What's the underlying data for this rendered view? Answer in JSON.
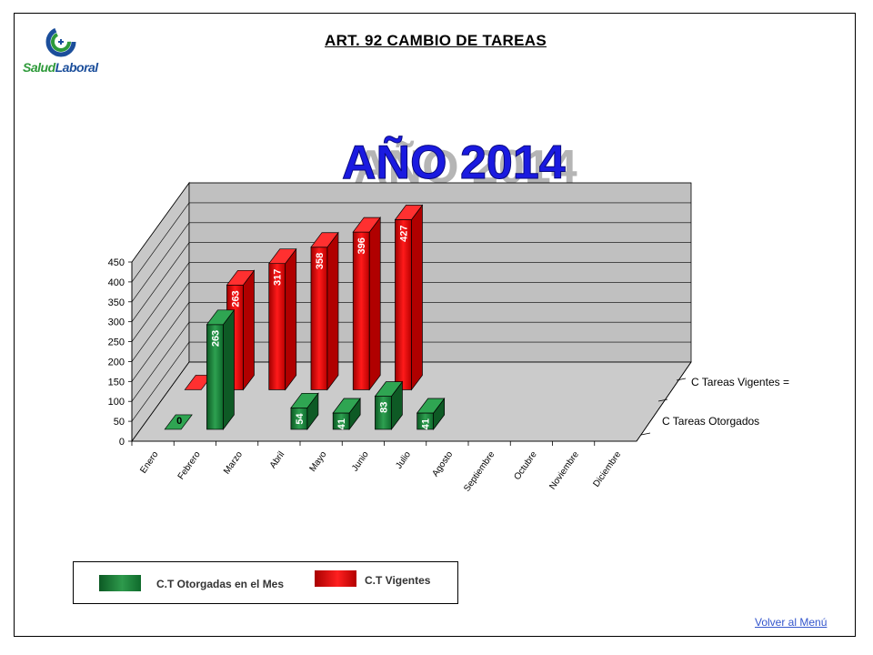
{
  "page": {
    "title": "ART. 92 CAMBIO DE TAREAS",
    "menu_link": "Volver al Menú",
    "logo": {
      "text_salud": "Salud",
      "text_laboral": "Laboral"
    }
  },
  "chart_data": {
    "type": "bar",
    "title": "AÑO 2014",
    "categories": [
      "Enero",
      "Febrero",
      "Marzo",
      "Abril",
      "Mayo",
      "Junio",
      "Julio",
      "Agosto",
      "Septiembre",
      "Octubre",
      "Noviembre",
      "Diciembre"
    ],
    "ylim": [
      0,
      450
    ],
    "yticks": [
      0,
      50,
      100,
      150,
      200,
      250,
      300,
      350,
      400,
      450
    ],
    "grid": true,
    "depth_labels": [
      "C Tareas Vigentes =",
      "C Tareas Otorgados"
    ],
    "series": [
      {
        "name": "C.T Otorgadas en el Mes",
        "color": "#1e7d3c",
        "values": [
          0,
          263,
          null,
          54,
          41,
          83,
          41,
          null,
          null,
          null,
          null,
          null
        ],
        "labels": [
          "0",
          "263",
          "",
          "54",
          "41",
          "83",
          "41",
          "",
          "",
          "",
          "",
          ""
        ]
      },
      {
        "name": "C.T  Vigentes",
        "color": "#e00000",
        "values": [
          0,
          263,
          317,
          358,
          396,
          427,
          null,
          null,
          null,
          null,
          null,
          null
        ],
        "labels": [
          "",
          "263",
          "317",
          "358",
          "396",
          "427",
          "",
          "",
          "",
          "",
          "",
          ""
        ]
      }
    ],
    "legend_position": "bottom-left"
  }
}
